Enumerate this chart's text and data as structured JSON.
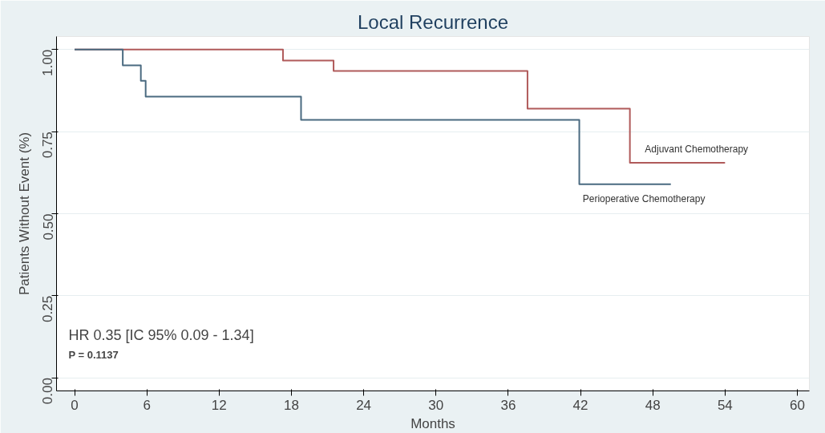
{
  "chart_data": {
    "type": "step",
    "title": "Local Recurrence",
    "xlabel": "Months",
    "ylabel": "Patients Without Event (%)",
    "series": [
      {
        "name": "Adjuvant Chemotherapy",
        "color": "#b05a5a",
        "x": [
          0,
          17.3,
          21.5,
          37.6,
          46.1,
          54
        ],
        "values": [
          1.0,
          0.967,
          0.935,
          0.82,
          0.655,
          0.655
        ]
      },
      {
        "name": "Perioperative Chemotherapy",
        "color": "#4a6a80",
        "x": [
          0,
          4.0,
          5.5,
          5.9,
          18.8,
          41.9,
          49.5
        ],
        "values": [
          1.0,
          0.952,
          0.905,
          0.857,
          0.786,
          0.59,
          0.59
        ]
      }
    ],
    "xlim": [
      -1.5,
      61
    ],
    "ylim": [
      -0.04,
      1.04
    ],
    "xticks": [
      0,
      6,
      12,
      18,
      24,
      30,
      36,
      42,
      48,
      54,
      60
    ],
    "yticks": [
      {
        "value": 0,
        "label": "0.00"
      },
      {
        "value": 0.25,
        "label": "0.25"
      },
      {
        "value": 0.5,
        "label": "0.50"
      },
      {
        "value": 0.75,
        "label": "0.75"
      },
      {
        "value": 1,
        "label": "1.00"
      }
    ],
    "grid": "y",
    "legend": false,
    "marker": "none",
    "line_style": "solid",
    "annotations": [
      "HR 0.35 [IC 95% 0.09 - 1.34]",
      "P = 0.1137"
    ]
  }
}
